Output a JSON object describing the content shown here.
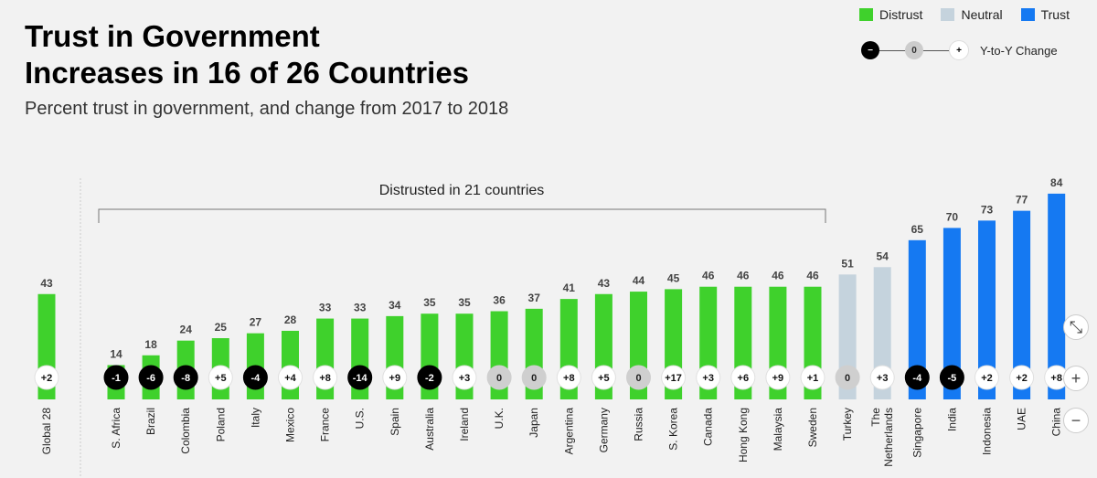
{
  "legend": {
    "items": [
      {
        "label": "Distrust",
        "color": "#3fd12c"
      },
      {
        "label": "Neutral",
        "color": "#c5d3dd"
      },
      {
        "label": "Trust",
        "color": "#1579f2"
      }
    ],
    "yoy": {
      "minus": "−",
      "zero": "0",
      "plus": "+",
      "label": "Y-to-Y Change"
    }
  },
  "bracket_label": "Distrusted in 21 countries",
  "controls": {
    "collapse": "⤡",
    "zoom_in": "+",
    "zoom_out": "−"
  },
  "chart_data": {
    "type": "bar",
    "title": "Trust in Government Increases in 16 of 26 Countries",
    "title_lines": [
      "Trust in Government",
      "Increases in 16 of 26 Countries"
    ],
    "subtitle": "Percent trust in government, and change from 2017 to 2018",
    "categories": [
      "Global 28",
      "S. Africa",
      "Brazil",
      "Colombia",
      "Poland",
      "Italy",
      "Mexico",
      "France",
      "U.S.",
      "Spain",
      "Australia",
      "Ireland",
      "U.K.",
      "Japan",
      "Argentina",
      "Germany",
      "Russia",
      "S. Korea",
      "Canada",
      "Hong Kong",
      "Malaysia",
      "Sweden",
      "Turkey",
      "The Netherlands",
      "Singapore",
      "India",
      "Indonesia",
      "UAE",
      "China"
    ],
    "values": [
      43,
      14,
      18,
      24,
      25,
      27,
      28,
      33,
      33,
      34,
      35,
      35,
      36,
      37,
      41,
      43,
      44,
      45,
      46,
      46,
      46,
      46,
      51,
      54,
      65,
      70,
      73,
      77,
      84
    ],
    "changes": [
      "+2",
      "-1",
      "-6",
      "-8",
      "+5",
      "-4",
      "+4",
      "+8",
      "-14",
      "+9",
      "-2",
      "+3",
      "0",
      "0",
      "+8",
      "+5",
      "0",
      "+17",
      "+3",
      "+6",
      "+9",
      "+1",
      "0",
      "+3",
      "-4",
      "-5",
      "+2",
      "+2",
      "+8"
    ],
    "bar_colors": {
      "distrust": "#3fd12c",
      "neutral": "#c5d3dd",
      "trust": "#1579f2"
    },
    "ylim": [
      0,
      100
    ]
  }
}
